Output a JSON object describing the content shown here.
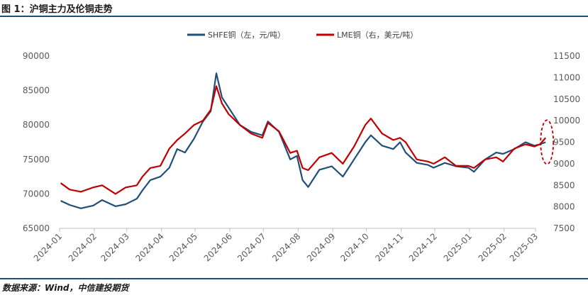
{
  "figure": {
    "title": "图 1：沪铜主力及伦铜走势",
    "source": "数据来源：Wind，中信建投期货"
  },
  "colors": {
    "shfe": "#1f4e79",
    "lme": "#c00000",
    "axis": "#bfbfbf",
    "highlight": "#c00000"
  },
  "chart_data": {
    "type": "line",
    "x_ticks": [
      "2024-01",
      "2024-02",
      "2024-03",
      "2024-04",
      "2024-05",
      "2024-06",
      "2024-07",
      "2024-08",
      "2024-09",
      "2024-10",
      "2024-11",
      "2024-12",
      "2025-01",
      "2025-02",
      "2025-03"
    ],
    "y_left": {
      "ticks": [
        "65000",
        "70000",
        "75000",
        "80000",
        "85000",
        "90000"
      ],
      "ylim": [
        65000,
        90000
      ]
    },
    "y_right": {
      "ticks": [
        "7500",
        "8000",
        "8500",
        "9000",
        "9500",
        "10000",
        "10500",
        "11000",
        "11500"
      ],
      "ylim": [
        7500,
        11500
      ]
    },
    "legend_position": "top",
    "series": [
      {
        "name": "SHFE铜（左，元/吨）",
        "axis": "left",
        "points": [
          [
            "2024-01-02",
            69000
          ],
          [
            "2024-01-10",
            68400
          ],
          [
            "2024-01-20",
            67900
          ],
          [
            "2024-01-31",
            68300
          ],
          [
            "2024-02-08",
            69100
          ],
          [
            "2024-02-20",
            68200
          ],
          [
            "2024-02-29",
            68500
          ],
          [
            "2024-03-10",
            69300
          ],
          [
            "2024-03-15",
            70500
          ],
          [
            "2024-03-22",
            72000
          ],
          [
            "2024-03-31",
            72500
          ],
          [
            "2024-04-08",
            73800
          ],
          [
            "2024-04-15",
            76500
          ],
          [
            "2024-04-22",
            76000
          ],
          [
            "2024-04-30",
            78000
          ],
          [
            "2024-05-08",
            80500
          ],
          [
            "2024-05-15",
            82000
          ],
          [
            "2024-05-20",
            87500
          ],
          [
            "2024-05-25",
            84000
          ],
          [
            "2024-05-31",
            82500
          ],
          [
            "2024-06-10",
            80000
          ],
          [
            "2024-06-20",
            79000
          ],
          [
            "2024-06-30",
            78500
          ],
          [
            "2024-07-05",
            80500
          ],
          [
            "2024-07-15",
            79000
          ],
          [
            "2024-07-25",
            75000
          ],
          [
            "2024-07-31",
            75500
          ],
          [
            "2024-08-05",
            72000
          ],
          [
            "2024-08-10",
            71000
          ],
          [
            "2024-08-20",
            73500
          ],
          [
            "2024-08-31",
            74000
          ],
          [
            "2024-09-10",
            72500
          ],
          [
            "2024-09-20",
            75000
          ],
          [
            "2024-09-30",
            77500
          ],
          [
            "2024-10-05",
            78500
          ],
          [
            "2024-10-15",
            77000
          ],
          [
            "2024-10-25",
            76500
          ],
          [
            "2024-10-31",
            77500
          ],
          [
            "2024-11-05",
            76000
          ],
          [
            "2024-11-15",
            74500
          ],
          [
            "2024-11-25",
            74200
          ],
          [
            "2024-11-30",
            73800
          ],
          [
            "2024-12-10",
            74500
          ],
          [
            "2024-12-20",
            74000
          ],
          [
            "2024-12-31",
            73800
          ],
          [
            "2025-01-05",
            73200
          ],
          [
            "2025-01-15",
            75000
          ],
          [
            "2025-01-25",
            76000
          ],
          [
            "2025-01-31",
            75800
          ],
          [
            "2025-02-10",
            76500
          ],
          [
            "2025-02-20",
            77500
          ],
          [
            "2025-02-28",
            77000
          ],
          [
            "2025-03-05",
            77200
          ],
          [
            "2025-03-10",
            77500
          ]
        ]
      },
      {
        "name": "LME铜（右，美元/吨）",
        "axis": "right",
        "points": [
          [
            "2024-01-02",
            8550
          ],
          [
            "2024-01-10",
            8400
          ],
          [
            "2024-01-20",
            8350
          ],
          [
            "2024-01-31",
            8450
          ],
          [
            "2024-02-08",
            8500
          ],
          [
            "2024-02-20",
            8300
          ],
          [
            "2024-02-29",
            8450
          ],
          [
            "2024-03-10",
            8500
          ],
          [
            "2024-03-15",
            8700
          ],
          [
            "2024-03-22",
            8900
          ],
          [
            "2024-03-31",
            8950
          ],
          [
            "2024-04-08",
            9350
          ],
          [
            "2024-04-15",
            9550
          ],
          [
            "2024-04-22",
            9700
          ],
          [
            "2024-04-30",
            9900
          ],
          [
            "2024-05-08",
            10000
          ],
          [
            "2024-05-15",
            10250
          ],
          [
            "2024-05-20",
            10800
          ],
          [
            "2024-05-25",
            10400
          ],
          [
            "2024-05-31",
            10150
          ],
          [
            "2024-06-10",
            9900
          ],
          [
            "2024-06-20",
            9700
          ],
          [
            "2024-06-30",
            9600
          ],
          [
            "2024-07-05",
            9950
          ],
          [
            "2024-07-15",
            9750
          ],
          [
            "2024-07-25",
            9250
          ],
          [
            "2024-07-31",
            9300
          ],
          [
            "2024-08-05",
            8900
          ],
          [
            "2024-08-10",
            8850
          ],
          [
            "2024-08-20",
            9150
          ],
          [
            "2024-08-31",
            9250
          ],
          [
            "2024-09-10",
            9000
          ],
          [
            "2024-09-20",
            9400
          ],
          [
            "2024-09-30",
            9900
          ],
          [
            "2024-10-05",
            10050
          ],
          [
            "2024-10-15",
            9700
          ],
          [
            "2024-10-25",
            9550
          ],
          [
            "2024-10-31",
            9600
          ],
          [
            "2024-11-05",
            9500
          ],
          [
            "2024-11-15",
            9100
          ],
          [
            "2024-11-25",
            9050
          ],
          [
            "2024-11-30",
            9000
          ],
          [
            "2024-12-10",
            9150
          ],
          [
            "2024-12-20",
            8950
          ],
          [
            "2024-12-31",
            8950
          ],
          [
            "2025-01-05",
            8900
          ],
          [
            "2025-01-15",
            9100
          ],
          [
            "2025-01-25",
            9150
          ],
          [
            "2025-01-31",
            9050
          ],
          [
            "2025-02-10",
            9350
          ],
          [
            "2025-02-20",
            9450
          ],
          [
            "2025-02-28",
            9400
          ],
          [
            "2025-03-05",
            9450
          ],
          [
            "2025-03-10",
            9600
          ]
        ]
      }
    ],
    "annotations": [
      {
        "type": "dashed-ellipse",
        "color": "#c00000",
        "at": "2025-03"
      }
    ]
  }
}
